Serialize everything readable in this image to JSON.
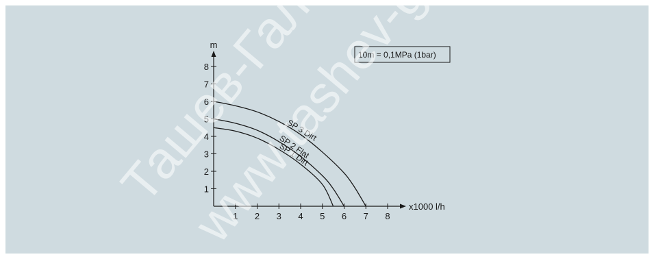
{
  "chart_data": {
    "type": "line",
    "title": "",
    "xlabel": "x1000 l/h",
    "ylabel": "m",
    "xlim": [
      0,
      8
    ],
    "ylim": [
      0,
      8
    ],
    "xticks": [
      "1",
      "2",
      "3",
      "4",
      "5",
      "6",
      "7",
      "8"
    ],
    "yticks": [
      "1",
      "2",
      "3",
      "4",
      "5",
      "6",
      "7",
      "8"
    ],
    "grid": false,
    "legend": "none",
    "annotation": "10m = 0,1MPa (1bar)",
    "series": [
      {
        "name": "SP 3 Dirt",
        "label_at_x": 3.35,
        "x": [
          0,
          1,
          2,
          3,
          4,
          5,
          6,
          6.5,
          7
        ],
        "y": [
          6.0,
          5.75,
          5.4,
          4.85,
          4.1,
          3.1,
          1.9,
          1.05,
          0
        ]
      },
      {
        "name": "SP 2 Flat",
        "label_at_x": 3.0,
        "x": [
          0,
          1,
          2,
          3,
          4,
          5,
          5.5,
          6
        ],
        "y": [
          5.0,
          4.75,
          4.35,
          3.7,
          2.85,
          1.75,
          1.0,
          0
        ]
      },
      {
        "name": "SP 1 Dirt",
        "label_at_x": 3.0,
        "x": [
          0,
          1,
          2,
          3,
          4,
          5,
          5.5
        ],
        "y": [
          4.5,
          4.3,
          3.9,
          3.25,
          2.4,
          1.25,
          0
        ]
      }
    ]
  },
  "watermark": [
    "Ташев-Гальв",
    "www.tashev-g"
  ],
  "colors": {
    "background": "#cfdbe0",
    "line": "#1a1a1a"
  }
}
